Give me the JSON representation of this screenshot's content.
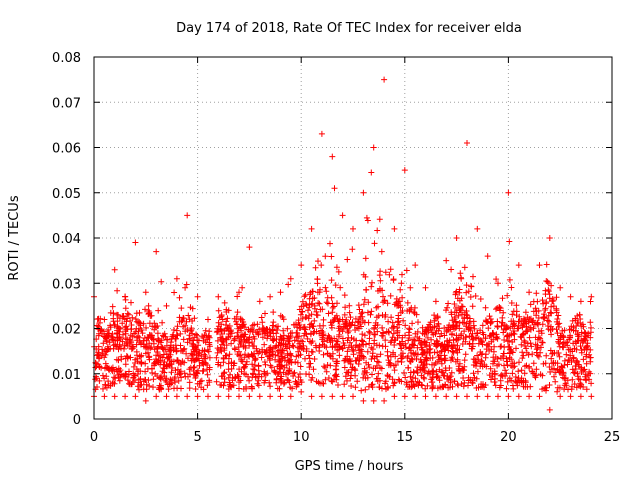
{
  "chart_data": {
    "type": "scatter",
    "title": "Day 174 of 2018, Rate Of TEC Index for receiver elda",
    "xlabel": "GPS time / hours",
    "ylabel": "ROTI / TECUs",
    "xlim": [
      0,
      25
    ],
    "ylim": [
      0,
      0.08
    ],
    "xticks": [
      0,
      5,
      10,
      15,
      20,
      25
    ],
    "xtick_labels": [
      "0",
      "5",
      "10",
      "15",
      "20",
      "25"
    ],
    "yticks": [
      0,
      0.01,
      0.02,
      0.03,
      0.04,
      0.05,
      0.06,
      0.07,
      0.08
    ],
    "ytick_labels": [
      "0",
      "0.01",
      "0.02",
      "0.03",
      "0.04",
      "0.05",
      "0.06",
      "0.07",
      "0.08"
    ],
    "grid": true,
    "marker": "+",
    "color": "#ff0000",
    "data_gap_hours": [
      5.6,
      5.9
    ],
    "series": [
      {
        "name": "ROTI",
        "x": [
          0.0,
          0.3,
          0.6,
          0.9,
          1.2,
          1.5,
          1.8,
          2.1,
          2.4,
          2.7,
          3.0,
          3.3,
          3.6,
          3.9,
          4.2,
          4.5,
          4.8,
          5.1,
          5.4,
          6.0,
          6.3,
          6.6,
          6.9,
          7.2,
          7.5,
          7.8,
          8.1,
          8.4,
          8.7,
          9.0,
          9.3,
          9.6,
          9.9,
          10.2,
          10.5,
          10.8,
          11.1,
          11.4,
          11.7,
          12.0,
          12.3,
          12.6,
          12.9,
          13.2,
          13.5,
          13.8,
          14.1,
          14.4,
          14.7,
          15.0,
          15.3,
          15.6,
          15.9,
          16.2,
          16.5,
          16.8,
          17.1,
          17.4,
          17.7,
          18.0,
          18.3,
          18.6,
          18.9,
          19.2,
          19.5,
          19.8,
          20.1,
          20.4,
          20.7,
          21.0,
          21.3,
          21.6,
          21.9,
          22.2,
          22.5,
          22.8,
          23.1,
          23.4,
          23.7,
          24.0
        ],
        "y": [
          0.012,
          0.014,
          0.011,
          0.015,
          0.013,
          0.016,
          0.014,
          0.013,
          0.012,
          0.015,
          0.013,
          0.012,
          0.011,
          0.012,
          0.013,
          0.014,
          0.012,
          0.011,
          0.012,
          0.013,
          0.015,
          0.012,
          0.014,
          0.013,
          0.012,
          0.013,
          0.014,
          0.012,
          0.013,
          0.012,
          0.011,
          0.013,
          0.014,
          0.017,
          0.016,
          0.018,
          0.017,
          0.016,
          0.015,
          0.014,
          0.015,
          0.013,
          0.014,
          0.016,
          0.013,
          0.018,
          0.015,
          0.014,
          0.016,
          0.013,
          0.012,
          0.013,
          0.012,
          0.013,
          0.014,
          0.012,
          0.013,
          0.015,
          0.016,
          0.014,
          0.013,
          0.012,
          0.013,
          0.014,
          0.015,
          0.013,
          0.012,
          0.014,
          0.013,
          0.015,
          0.016,
          0.015,
          0.017,
          0.014,
          0.013,
          0.012,
          0.013,
          0.014,
          0.012,
          0.013
        ]
      }
    ],
    "envelope": {
      "x": [
        0.0,
        0.5,
        1.0,
        1.5,
        2.0,
        2.5,
        3.0,
        3.5,
        4.0,
        4.5,
        5.0,
        5.5,
        6.0,
        6.5,
        7.0,
        7.5,
        8.0,
        8.5,
        9.0,
        9.5,
        10.0,
        10.5,
        11.0,
        11.5,
        12.0,
        12.5,
        13.0,
        13.5,
        14.0,
        14.5,
        15.0,
        15.5,
        16.0,
        16.5,
        17.0,
        17.5,
        18.0,
        18.5,
        19.0,
        19.5,
        20.0,
        20.5,
        21.0,
        21.5,
        22.0,
        22.5,
        23.0,
        23.5,
        24.0
      ],
      "upper": [
        0.027,
        0.022,
        0.033,
        0.027,
        0.039,
        0.028,
        0.037,
        0.025,
        0.031,
        0.045,
        0.027,
        0.022,
        0.027,
        0.024,
        0.028,
        0.038,
        0.026,
        0.027,
        0.028,
        0.031,
        0.034,
        0.042,
        0.063,
        0.058,
        0.045,
        0.042,
        0.05,
        0.06,
        0.075,
        0.042,
        0.055,
        0.034,
        0.029,
        0.026,
        0.035,
        0.04,
        0.061,
        0.042,
        0.036,
        0.03,
        0.05,
        0.034,
        0.028,
        0.034,
        0.04,
        0.029,
        0.027,
        0.026,
        0.027
      ],
      "lower": [
        0.005,
        0.005,
        0.005,
        0.005,
        0.005,
        0.004,
        0.005,
        0.005,
        0.005,
        0.005,
        0.005,
        0.005,
        0.005,
        0.005,
        0.005,
        0.005,
        0.005,
        0.005,
        0.005,
        0.005,
        0.006,
        0.005,
        0.005,
        0.005,
        0.005,
        0.005,
        0.004,
        0.004,
        0.004,
        0.005,
        0.005,
        0.005,
        0.005,
        0.005,
        0.005,
        0.005,
        0.005,
        0.005,
        0.005,
        0.005,
        0.005,
        0.005,
        0.005,
        0.005,
        0.002,
        0.005,
        0.005,
        0.005,
        0.005
      ]
    }
  }
}
